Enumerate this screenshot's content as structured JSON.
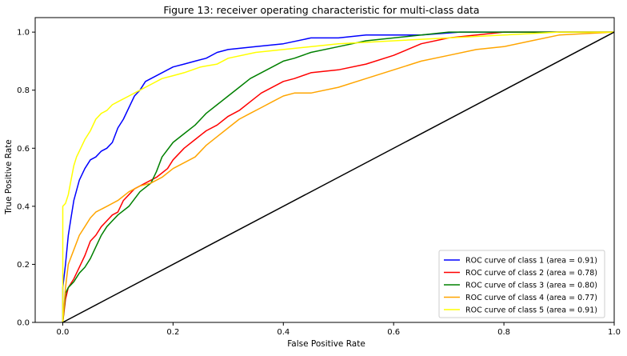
{
  "chart_data": {
    "type": "line",
    "title": "Figure 13: receiver operating characteristic for multi-class data",
    "xlabel": "False Positive Rate",
    "ylabel": "True Positive Rate",
    "xlim": [
      -0.05,
      1.0
    ],
    "ylim": [
      0.0,
      1.05
    ],
    "xticks": [
      "0.0",
      "0.2",
      "0.4",
      "0.6",
      "0.8",
      "1.0"
    ],
    "yticks": [
      "0.0",
      "0.2",
      "0.4",
      "0.6",
      "0.8",
      "1.0"
    ],
    "grid": false,
    "legend_position": "lower-right",
    "series": [
      {
        "name": "ROC curve of class 1 (area = 0.91)",
        "color": "#0000ff",
        "x": [
          0.0,
          0.0,
          0.005,
          0.01,
          0.015,
          0.02,
          0.03,
          0.04,
          0.05,
          0.06,
          0.07,
          0.08,
          0.09,
          0.1,
          0.11,
          0.12,
          0.13,
          0.14,
          0.15,
          0.16,
          0.18,
          0.2,
          0.22,
          0.24,
          0.26,
          0.28,
          0.3,
          0.35,
          0.4,
          0.45,
          0.5,
          0.55,
          0.6,
          0.65,
          0.72,
          0.8,
          0.9,
          1.0
        ],
        "y": [
          0.0,
          0.12,
          0.2,
          0.3,
          0.36,
          0.42,
          0.49,
          0.53,
          0.56,
          0.57,
          0.59,
          0.6,
          0.62,
          0.67,
          0.7,
          0.74,
          0.78,
          0.8,
          0.83,
          0.84,
          0.86,
          0.88,
          0.89,
          0.9,
          0.91,
          0.93,
          0.94,
          0.95,
          0.96,
          0.98,
          0.98,
          0.99,
          0.99,
          0.99,
          1.0,
          1.0,
          1.0,
          1.0
        ]
      },
      {
        "name": "ROC curve of class 2 (area = 0.78)",
        "color": "#ff0000",
        "x": [
          0.0,
          0.005,
          0.01,
          0.02,
          0.03,
          0.04,
          0.05,
          0.06,
          0.07,
          0.08,
          0.09,
          0.1,
          0.11,
          0.12,
          0.13,
          0.15,
          0.17,
          0.19,
          0.2,
          0.22,
          0.24,
          0.26,
          0.28,
          0.3,
          0.32,
          0.34,
          0.36,
          0.38,
          0.4,
          0.42,
          0.45,
          0.5,
          0.55,
          0.6,
          0.65,
          0.7,
          0.8,
          0.9,
          1.0
        ],
        "y": [
          0.0,
          0.08,
          0.12,
          0.15,
          0.19,
          0.23,
          0.28,
          0.3,
          0.33,
          0.35,
          0.37,
          0.38,
          0.42,
          0.44,
          0.46,
          0.48,
          0.5,
          0.53,
          0.56,
          0.6,
          0.63,
          0.66,
          0.68,
          0.71,
          0.73,
          0.76,
          0.79,
          0.81,
          0.83,
          0.84,
          0.86,
          0.87,
          0.89,
          0.92,
          0.96,
          0.98,
          1.0,
          1.0,
          1.0
        ]
      },
      {
        "name": "ROC curve of class 3 (area = 0.80)",
        "color": "#008000",
        "x": [
          0.0,
          0.005,
          0.01,
          0.02,
          0.03,
          0.04,
          0.05,
          0.06,
          0.07,
          0.08,
          0.09,
          0.1,
          0.12,
          0.14,
          0.16,
          0.17,
          0.18,
          0.2,
          0.22,
          0.24,
          0.26,
          0.28,
          0.3,
          0.32,
          0.34,
          0.36,
          0.38,
          0.4,
          0.42,
          0.45,
          0.5,
          0.55,
          0.6,
          0.65,
          0.7,
          0.8,
          0.9,
          1.0
        ],
        "y": [
          0.0,
          0.1,
          0.12,
          0.14,
          0.17,
          0.19,
          0.22,
          0.26,
          0.3,
          0.33,
          0.35,
          0.37,
          0.4,
          0.45,
          0.48,
          0.52,
          0.57,
          0.62,
          0.65,
          0.68,
          0.72,
          0.75,
          0.78,
          0.81,
          0.84,
          0.86,
          0.88,
          0.9,
          0.91,
          0.93,
          0.95,
          0.97,
          0.98,
          0.99,
          1.0,
          1.0,
          1.0,
          1.0
        ]
      },
      {
        "name": "ROC curve of class 4 (area = 0.77)",
        "color": "#ffa500",
        "x": [
          0.0,
          0.005,
          0.01,
          0.02,
          0.03,
          0.04,
          0.05,
          0.06,
          0.08,
          0.1,
          0.12,
          0.14,
          0.16,
          0.18,
          0.2,
          0.22,
          0.24,
          0.26,
          0.28,
          0.3,
          0.32,
          0.34,
          0.36,
          0.38,
          0.4,
          0.42,
          0.45,
          0.5,
          0.55,
          0.6,
          0.65,
          0.7,
          0.75,
          0.8,
          0.85,
          0.9,
          1.0
        ],
        "y": [
          0.0,
          0.12,
          0.2,
          0.25,
          0.3,
          0.33,
          0.36,
          0.38,
          0.4,
          0.42,
          0.45,
          0.47,
          0.48,
          0.5,
          0.53,
          0.55,
          0.57,
          0.61,
          0.64,
          0.67,
          0.7,
          0.72,
          0.74,
          0.76,
          0.78,
          0.79,
          0.79,
          0.81,
          0.84,
          0.87,
          0.9,
          0.92,
          0.94,
          0.95,
          0.97,
          0.99,
          1.0
        ]
      },
      {
        "name": "ROC curve of class 5 (area = 0.91)",
        "color": "#ffff00",
        "x": [
          0.0,
          0.0,
          0.005,
          0.01,
          0.015,
          0.02,
          0.025,
          0.03,
          0.04,
          0.05,
          0.06,
          0.07,
          0.08,
          0.09,
          0.1,
          0.12,
          0.14,
          0.16,
          0.18,
          0.2,
          0.22,
          0.25,
          0.28,
          0.3,
          0.35,
          0.4,
          0.5,
          0.6,
          0.7,
          0.8,
          0.9,
          1.0
        ],
        "y": [
          0.0,
          0.4,
          0.41,
          0.44,
          0.49,
          0.54,
          0.57,
          0.59,
          0.63,
          0.66,
          0.7,
          0.72,
          0.73,
          0.75,
          0.76,
          0.78,
          0.8,
          0.82,
          0.84,
          0.85,
          0.86,
          0.88,
          0.89,
          0.91,
          0.93,
          0.94,
          0.96,
          0.97,
          0.98,
          0.99,
          1.0,
          1.0
        ]
      }
    ],
    "reference_line": {
      "color": "#000000",
      "x": [
        0.0,
        1.0
      ],
      "y": [
        0.0,
        1.0
      ]
    }
  }
}
